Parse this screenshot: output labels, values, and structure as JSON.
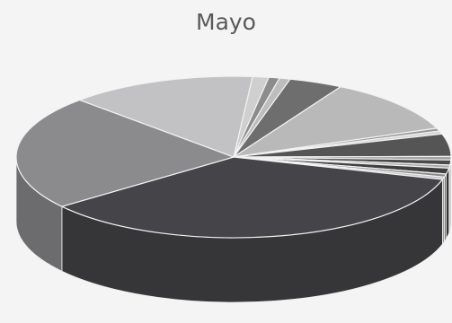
{
  "chart_data": {
    "type": "pie",
    "title": "Mayo",
    "legend": "none",
    "slices": [
      {
        "value": 1.2,
        "color": "#cfcfcf"
      },
      {
        "value": 0.8,
        "color": "#8c8c8c"
      },
      {
        "value": 0.8,
        "color": "#bdbdbd"
      },
      {
        "value": 4.0,
        "color": "#6e6e6e"
      },
      {
        "value": 11.0,
        "color": "#b9b9b9"
      },
      {
        "value": 0.6,
        "color": "#9a9a9a"
      },
      {
        "value": 0.6,
        "color": "#d6d6d6"
      },
      {
        "value": 4.5,
        "color": "#555555"
      },
      {
        "value": 0.7,
        "color": "#9e9e9e"
      },
      {
        "value": 1.0,
        "color": "#4a4a4a"
      },
      {
        "value": 0.6,
        "color": "#a8a8a8"
      },
      {
        "value": 1.2,
        "color": "#3f3f3f"
      },
      {
        "value": 0.6,
        "color": "#8a8a8a"
      },
      {
        "value": 0.5,
        "color": "#c6c6c6"
      },
      {
        "value": 35.0,
        "color": "#454549"
      },
      {
        "value": 23.0,
        "color": "#8b8b8d"
      },
      {
        "value": 13.9,
        "color": "#c2c2c4"
      }
    ]
  }
}
